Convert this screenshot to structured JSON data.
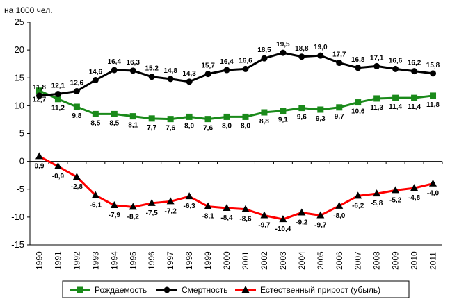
{
  "chart_data": {
    "type": "line",
    "unit_label": "на 1000 чел.",
    "ylim": [
      -15,
      25
    ],
    "yticks": [
      -15,
      -10,
      -5,
      0,
      5,
      10,
      15,
      20,
      25
    ],
    "grid": false,
    "legend_position": "bottom",
    "categories": [
      "1990",
      "1991",
      "1992",
      "1993",
      "1994",
      "1995",
      "1996",
      "1997",
      "1998",
      "1999",
      "2000",
      "2001",
      "2002",
      "2003",
      "2004",
      "2005",
      "2006",
      "2007",
      "2008",
      "2009",
      "2010",
      "2011"
    ],
    "series": [
      {
        "name": "Рождаемость",
        "color": "#1a8a1a",
        "marker": "square",
        "values": [
          12.7,
          11.2,
          9.8,
          8.5,
          8.5,
          8.1,
          7.7,
          7.6,
          8.0,
          7.6,
          8.0,
          8.0,
          8.8,
          9.1,
          9.6,
          9.3,
          9.7,
          10.6,
          11.3,
          11.4,
          11.4,
          11.8
        ],
        "labels": [
          "12,7",
          "11,2",
          "9,8",
          "8,5",
          "8,5",
          "8,1",
          "7,7",
          "7,6",
          "8,0",
          "7,6",
          "8,0",
          "8,0",
          "8,8",
          "9,1",
          "9,6",
          "9,3",
          "9,7",
          "10,6",
          "11,3",
          "11,4",
          "11,4",
          "11,8"
        ]
      },
      {
        "name": "Смертность",
        "color": "#000000",
        "marker": "circle",
        "values": [
          11.8,
          12.1,
          12.6,
          14.6,
          16.4,
          16.3,
          15.2,
          14.8,
          14.3,
          15.7,
          16.4,
          16.6,
          18.5,
          19.5,
          18.8,
          19.0,
          17.7,
          16.8,
          17.1,
          16.6,
          16.2,
          15.8
        ],
        "labels": [
          "11,8",
          "12,1",
          "12,6",
          "14,6",
          "16,4",
          "16,3",
          "15,2",
          "14,8",
          "14,3",
          "15,7",
          "16,4",
          "16,6",
          "18,5",
          "19,5",
          "18,8",
          "19,0",
          "17,7",
          "16,8",
          "17,1",
          "16,6",
          "16,2",
          "15,8"
        ]
      },
      {
        "name": "Естественный прирост (убыль)",
        "color": "#ff0000",
        "marker": "triangle",
        "values": [
          0.9,
          -0.9,
          -2.8,
          -6.1,
          -7.9,
          -8.2,
          -7.5,
          -7.2,
          -6.3,
          -8.1,
          -8.4,
          -8.6,
          -9.7,
          -10.4,
          -9.2,
          -9.7,
          -8.0,
          -6.2,
          -5.8,
          -5.2,
          -4.8,
          -4.0
        ],
        "labels": [
          "0,9",
          "-0,9",
          "-2,8",
          "-6,1",
          "-7,9",
          "-8,2",
          "-7,5",
          "-7,2",
          "-6,3",
          "-8,1",
          "-8,4",
          "-8,6",
          "-9,7",
          "-10,4",
          "-9,2",
          "-9,7",
          "-8,0",
          "-6,2",
          "-5,8",
          "-5,2",
          "-4,8",
          "-4,0"
        ]
      }
    ]
  }
}
